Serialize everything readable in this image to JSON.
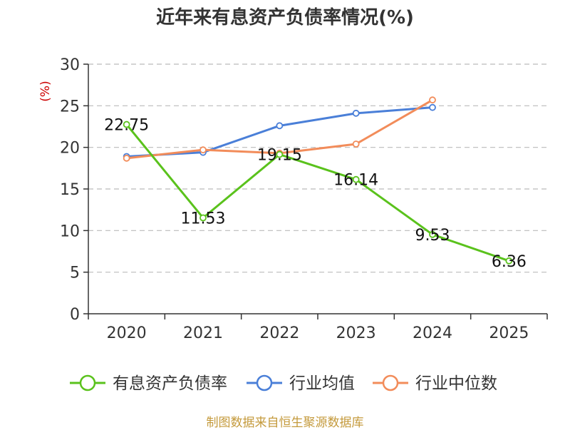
{
  "title": "近年来有息资产负债率情况(%)",
  "source": "制图数据来自恒生聚源数据库",
  "chart_data": {
    "type": "line",
    "title": "近年来有息资产负债率情况(%)",
    "ylabel": "(%)",
    "categories": [
      "2020",
      "2021",
      "2022",
      "2023",
      "2024",
      "2025"
    ],
    "y_ticks": [
      "0",
      "5",
      "10",
      "15",
      "20",
      "25",
      "30"
    ],
    "ylim": [
      0,
      30
    ],
    "grid": true,
    "legend_position": "bottom",
    "series": [
      {
        "name": "有息资产负债率",
        "color": "#5ac21c",
        "values": [
          22.75,
          11.53,
          19.15,
          16.14,
          9.53,
          6.36
        ],
        "labels": [
          "22.75",
          "11.53",
          "19.15",
          "16.14",
          "9.53",
          "6.36"
        ]
      },
      {
        "name": "行业均值",
        "color": "#4a7fd8",
        "values": [
          18.9,
          19.4,
          22.6,
          24.1,
          24.8,
          null
        ]
      },
      {
        "name": "行业中位数",
        "color": "#f28c5a",
        "values": [
          18.7,
          19.7,
          19.3,
          20.4,
          25.7,
          null
        ]
      }
    ]
  }
}
